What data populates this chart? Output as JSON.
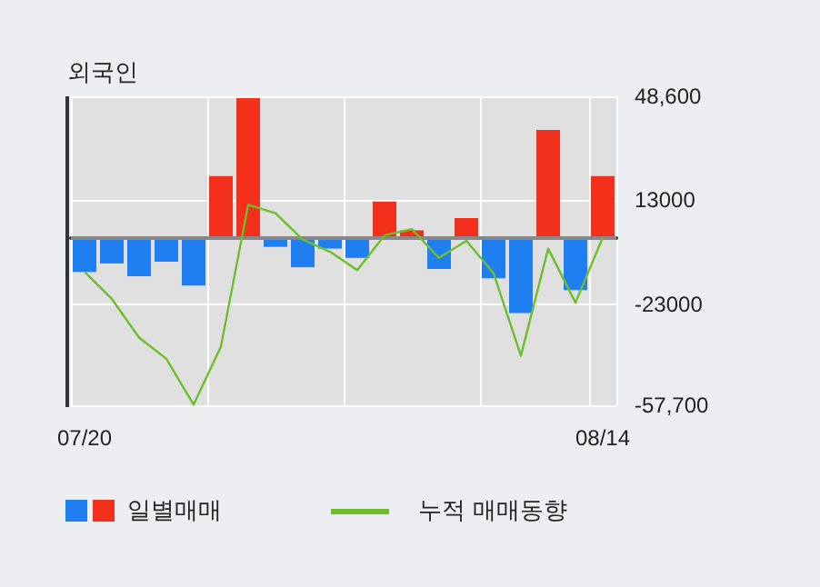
{
  "chart_data": {
    "type": "bar",
    "title": "외국인",
    "categories": [
      "07/20",
      null,
      null,
      null,
      null,
      null,
      null,
      null,
      null,
      null,
      null,
      null,
      null,
      null,
      null,
      null,
      null,
      null,
      null,
      "08/14"
    ],
    "series": [
      {
        "name": "일별매매",
        "colors": [
          "#1f7ef0",
          "#1f7ef0",
          "#1f7ef0",
          "#1f7ef0",
          "#1f7ef0",
          "#f2301c",
          "#f2301c",
          "#1f7ef0",
          "#1f7ef0",
          "#1f7ef0",
          "#1f7ef0",
          "#f2301c",
          "#f2301c",
          "#1f7ef0",
          "#f2301c",
          "#1f7ef0",
          "#1f7ef0",
          "#f2301c",
          "#1f7ef0",
          "#f2301c"
        ],
        "values": [
          -11800,
          -8900,
          -13300,
          -8300,
          -16500,
          21200,
          48000,
          -3200,
          -10200,
          -3800,
          -7000,
          12400,
          2500,
          -10800,
          6700,
          -14000,
          -26000,
          37000,
          -18100,
          21200
        ]
      },
      {
        "name": "누적 매매동향",
        "type": "line",
        "color": "#6cbf2a",
        "values": [
          -11800,
          -21100,
          -34400,
          -41700,
          -57500,
          -37500,
          11300,
          8400,
          -700,
          -4900,
          -11200,
          800,
          2900,
          -7000,
          -1100,
          -12300,
          -40700,
          -3800,
          -22400,
          0
        ]
      }
    ],
    "ylim": [
      -57700,
      48600
    ],
    "yticks": [
      {
        "value": 48600,
        "label": "48,600"
      },
      13000,
      -23000,
      {
        "value": -57700,
        "label": "-57,700"
      }
    ],
    "ref_lines": [
      {
        "axis": "y",
        "value": 0,
        "color": "#888888"
      }
    ],
    "grid": true,
    "legend": "bottom",
    "marker": "none",
    "line_style": "solid"
  }
}
